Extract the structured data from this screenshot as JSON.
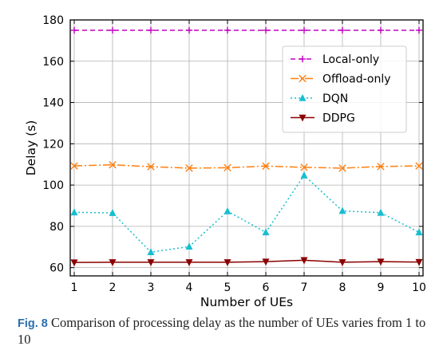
{
  "chart_data": {
    "type": "line",
    "xlabel": "Number of UEs",
    "ylabel": "Delay (s)",
    "x": [
      1,
      2,
      3,
      4,
      5,
      6,
      7,
      8,
      9,
      10
    ],
    "xlim": [
      1,
      10
    ],
    "ylim": [
      56,
      180
    ],
    "xticks": [
      1,
      2,
      3,
      4,
      5,
      6,
      7,
      8,
      9,
      10
    ],
    "yticks": [
      60,
      80,
      100,
      120,
      140,
      160,
      180
    ],
    "grid": true,
    "legend_position": "top-right",
    "series": [
      {
        "name": "Local-only",
        "color": "#c000c0",
        "marker": "plus",
        "dash": "6,4",
        "values": [
          175,
          175,
          175,
          175,
          175,
          175,
          175,
          175,
          175,
          175
        ]
      },
      {
        "name": "Offload-only",
        "color": "#ff7f0e",
        "marker": "x",
        "dash": "10,3,2,3",
        "values": [
          109.3,
          109.8,
          108.9,
          108.2,
          108.4,
          109.2,
          108.6,
          108.2,
          109.0,
          109.3
        ]
      },
      {
        "name": "DQN",
        "color": "#17becf",
        "marker": "triangle-up",
        "dash": "2,3",
        "values": [
          86.8,
          86.5,
          67.5,
          70.2,
          87.3,
          77.1,
          104.7,
          87.5,
          86.6,
          77.1
        ]
      },
      {
        "name": "DDPG",
        "color": "#8b0000",
        "marker": "triangle-down",
        "dash": "",
        "values": [
          62.5,
          62.6,
          62.6,
          62.6,
          62.6,
          62.9,
          63.6,
          62.6,
          62.9,
          62.7
        ]
      }
    ]
  },
  "caption": {
    "label": "Fig. 8",
    "text": "Comparison of processing delay as the number of UEs varies from 1 to 10"
  }
}
